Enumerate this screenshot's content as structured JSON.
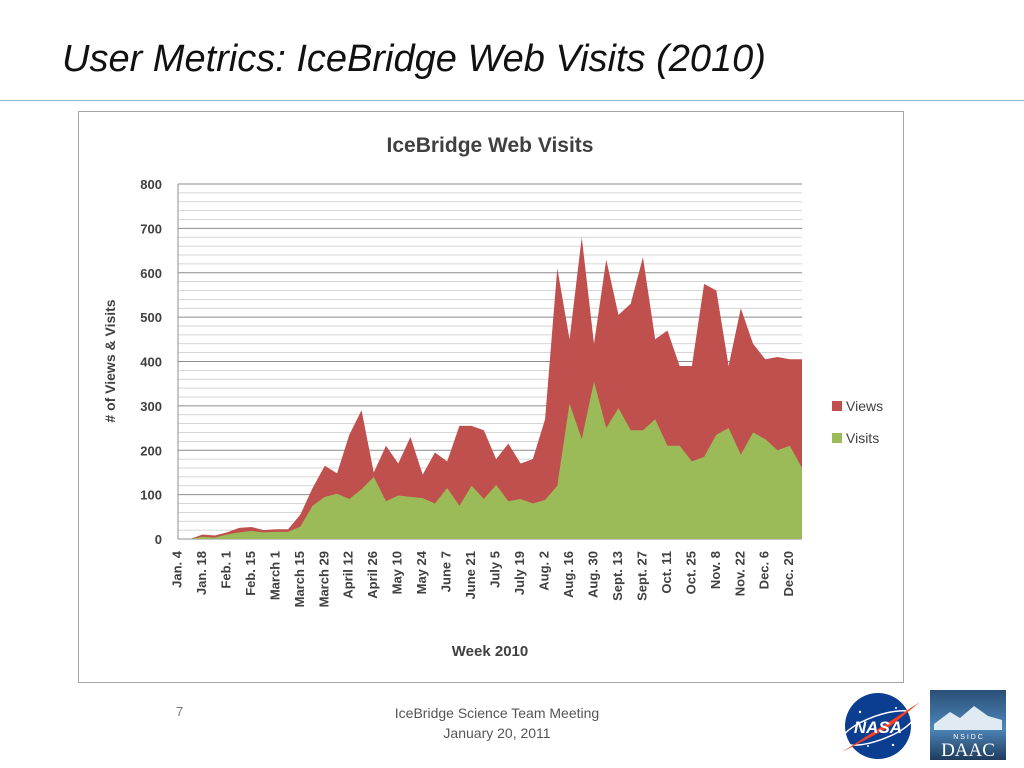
{
  "slide": {
    "title": "User Metrics:  IceBridge Web Visits (2010)",
    "page_number": "7",
    "footer_line1": "IceBridge Science Team Meeting",
    "footer_line2": "January 20, 2011",
    "logos": [
      "nasa-logo",
      "nsidc-daac-logo"
    ],
    "logo_text": {
      "nasa": "NASA",
      "nsidc": "N S I D C",
      "daac": "DAAC"
    }
  },
  "chart_data": {
    "type": "area",
    "title": "IceBridge Web Visits",
    "xlabel": "Week 2010",
    "ylabel": "# of Views & Visits",
    "ylim": [
      0,
      800
    ],
    "yticks": [
      0,
      100,
      200,
      300,
      400,
      500,
      600,
      700,
      800
    ],
    "grid": true,
    "legend_position": "right",
    "x": [
      "Jan. 4",
      "Jan. 11",
      "Jan. 18",
      "Jan. 25",
      "Feb. 1",
      "Feb. 8",
      "Feb. 15",
      "Feb. 22",
      "March 1",
      "March 8",
      "March 15",
      "March 22",
      "March 29",
      "April 5",
      "April 12",
      "April 19",
      "April 26",
      "May 3",
      "May 10",
      "May 17",
      "May 24",
      "May 31",
      "June 7",
      "June 14",
      "June 21",
      "June 28",
      "July 5",
      "July 12",
      "July 19",
      "July 26",
      "Aug. 2",
      "Aug. 9",
      "Aug. 16",
      "Aug. 23",
      "Aug. 30",
      "Sept. 6",
      "Sept. 13",
      "Sept. 20",
      "Sept. 27",
      "Oct. 4",
      "Oct. 11",
      "Oct. 18",
      "Oct. 25",
      "Nov. 1",
      "Nov. 8",
      "Nov. 15",
      "Nov. 22",
      "Nov. 29",
      "Dec. 6",
      "Dec. 13",
      "Dec. 20",
      "Dec. 27"
    ],
    "tick_labels": [
      "Jan. 4",
      "Jan. 18",
      "Feb. 1",
      "Feb. 15",
      "March 1",
      "March 15",
      "March 29",
      "April 12",
      "April 26",
      "May 10",
      "May 24",
      "June 7",
      "June 21",
      "July 5",
      "July 19",
      "Aug. 2",
      "Aug. 16",
      "Aug. 30",
      "Sept. 13",
      "Sept. 27",
      "Oct. 11",
      "Oct. 25",
      "Nov. 8",
      "Nov. 22",
      "Dec. 6",
      "Dec. 20"
    ],
    "series": [
      {
        "name": "Views",
        "color": "#c0504d",
        "values": [
          0,
          0,
          10,
          8,
          15,
          25,
          27,
          20,
          22,
          22,
          55,
          115,
          165,
          148,
          235,
          290,
          150,
          210,
          170,
          230,
          145,
          195,
          175,
          255,
          255,
          245,
          180,
          215,
          170,
          180,
          270,
          610,
          450,
          680,
          440,
          630,
          505,
          530,
          635,
          450,
          470,
          390,
          390,
          575,
          560,
          390,
          520,
          440,
          405,
          410,
          405,
          405
        ]
      },
      {
        "name": "Visits",
        "color": "#9bbb59",
        "values": [
          0,
          0,
          5,
          3,
          10,
          15,
          18,
          15,
          16,
          16,
          28,
          75,
          95,
          102,
          90,
          112,
          140,
          85,
          98,
          95,
          92,
          80,
          115,
          75,
          120,
          90,
          122,
          85,
          90,
          80,
          88,
          120,
          305,
          225,
          355,
          250,
          295,
          245,
          245,
          270,
          210,
          210,
          175,
          185,
          235,
          250,
          190,
          240,
          225,
          200,
          210,
          160
        ]
      }
    ]
  }
}
